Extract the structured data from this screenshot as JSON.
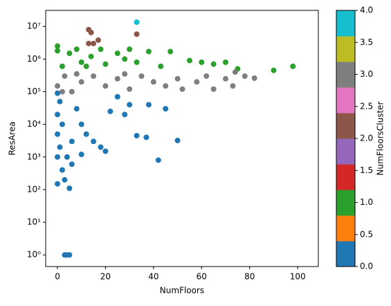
{
  "chart_data": {
    "type": "scatter",
    "x_label": "NumFloors",
    "y_label": "ResArea",
    "xlim": [
      -4.9,
      108.6
    ],
    "xticks": [
      0,
      20,
      40,
      60,
      80,
      100
    ],
    "ylim": [
      0.44,
      31000000
    ],
    "log_y": true,
    "yticks": [
      {
        "value": 1,
        "label": "10⁰"
      },
      {
        "value": 10,
        "label": "10¹"
      },
      {
        "value": 100,
        "label": "10²"
      },
      {
        "value": 1000,
        "label": "10³"
      },
      {
        "value": 10000,
        "label": "10⁴"
      },
      {
        "value": 100000,
        "label": "10⁵"
      },
      {
        "value": 1000000,
        "label": "10⁶"
      },
      {
        "value": 10000000,
        "label": "10⁷"
      }
    ],
    "x": [
      0,
      0,
      2,
      5,
      8,
      10,
      14,
      18,
      20,
      25,
      30,
      33,
      38,
      47,
      55,
      60,
      65,
      70,
      75,
      90,
      98,
      28,
      12,
      43,
      0,
      3,
      6,
      10,
      15,
      20,
      25,
      30,
      35,
      40,
      45,
      50,
      52,
      58,
      62,
      65,
      70,
      73,
      78,
      82,
      74,
      2,
      8,
      28,
      0,
      1,
      0,
      2,
      0,
      1,
      0,
      2,
      0,
      3,
      5,
      4,
      6,
      3,
      4,
      5,
      8,
      10,
      12,
      15,
      18,
      20,
      22,
      25,
      28,
      33,
      37,
      38,
      42,
      45,
      50,
      30,
      10,
      6,
      13,
      14,
      15,
      17,
      33,
      13,
      33
    ],
    "y": [
      2500000,
      1800000,
      600000,
      1500000,
      2000000,
      800000,
      1200000,
      2000000,
      700000,
      1500000,
      2000000,
      800000,
      1700000,
      1700000,
      900000,
      800000,
      700000,
      800000,
      500000,
      450000,
      600000,
      1000000,
      600000,
      600000,
      150000,
      300000,
      100000,
      200000,
      300000,
      150000,
      250000,
      120000,
      300000,
      200000,
      150000,
      250000,
      120000,
      200000,
      300000,
      120000,
      250000,
      150000,
      300000,
      260000,
      400000,
      100000,
      350000,
      350000,
      90000,
      50000,
      20000,
      10000,
      5000,
      2000,
      1000,
      400,
      150,
      200,
      110,
      1000,
      3000,
      1,
      1,
      1,
      30000,
      10000,
      5000,
      3000,
      2000,
      1500,
      25000,
      70000,
      20000,
      4500,
      4000,
      40000,
      800,
      30000,
      3200,
      40000,
      1200,
      600,
      8000000,
      6500000,
      3000000,
      3800000,
      5800000,
      3000000,
      13500000
    ],
    "c": [
      1,
      1,
      1,
      1,
      1,
      1,
      1,
      1,
      1,
      1,
      1,
      1,
      1,
      1,
      1,
      1,
      1,
      1,
      1,
      1,
      1,
      1,
      1,
      1,
      3,
      3,
      3,
      3,
      3,
      3,
      3,
      3,
      3,
      3,
      3,
      3,
      3,
      3,
      3,
      3,
      3,
      3,
      3,
      3,
      3,
      3,
      3,
      3,
      0,
      0,
      0,
      0,
      0,
      0,
      0,
      0,
      0,
      0,
      0,
      0,
      0,
      0,
      0,
      0,
      0,
      0,
      0,
      0,
      0,
      0,
      0,
      0,
      0,
      0,
      0,
      0,
      0,
      0,
      0,
      0,
      0,
      0,
      2,
      2,
      2,
      2,
      2,
      2,
      4
    ],
    "colorbar": {
      "label": "NumFloorsCluster",
      "lim": [
        0,
        4
      ],
      "colors": [
        "#1f77b4",
        "#ff7f0e",
        "#2ca02c",
        "#d62728",
        "#9467bd",
        "#8c564b",
        "#e377c2",
        "#7f7f7f",
        "#bcbd22",
        "#17becf"
      ],
      "ticks": [
        {
          "value": 0,
          "label": "0.0"
        },
        0.5,
        {
          "value": 1,
          "label": "1.0"
        },
        1.5,
        {
          "value": 2,
          "label": "2.0"
        },
        2.5,
        {
          "value": 3,
          "label": "3.0"
        },
        3.5,
        {
          "value": 4,
          "label": "4.0"
        }
      ]
    }
  }
}
